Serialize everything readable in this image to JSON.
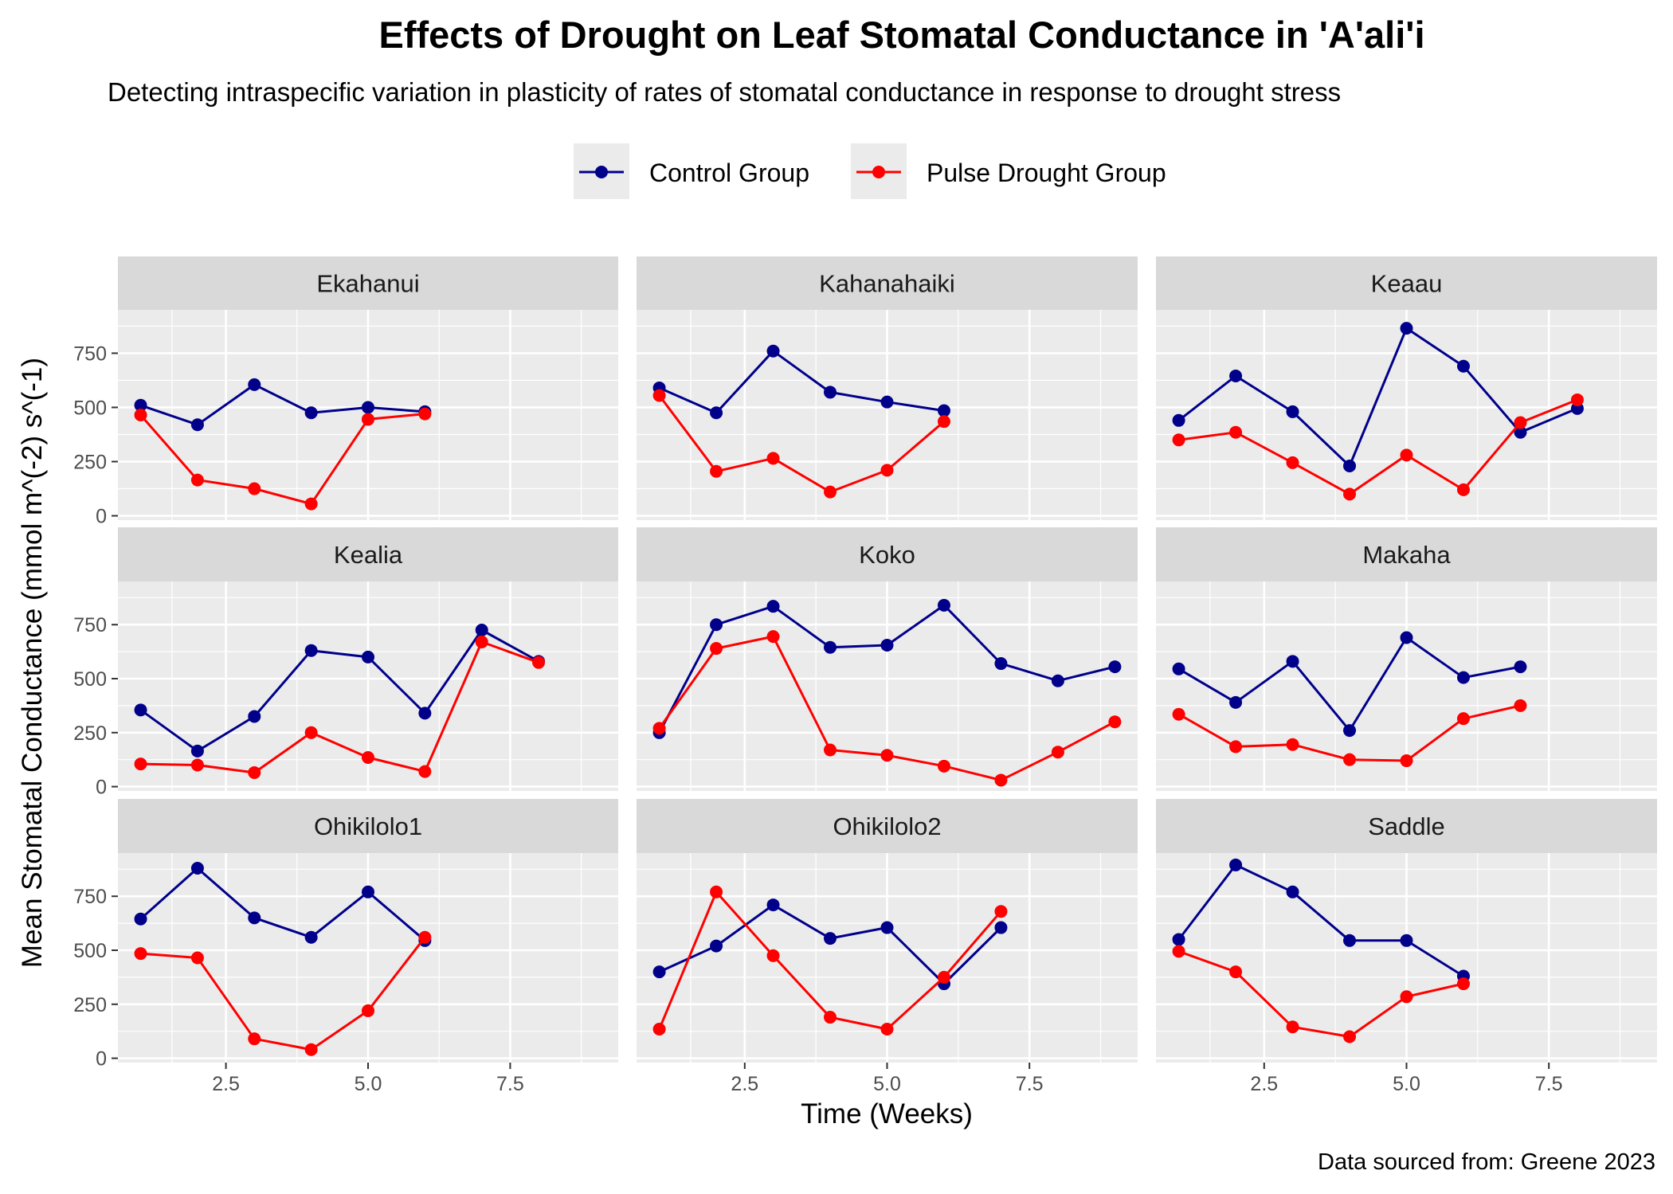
{
  "chart_data": {
    "type": "line",
    "title": "Effects of Drought on Leaf Stomatal Conductance in 'A'ali'i",
    "subtitle": "Detecting intraspecific variation in plasticity of rates of stomatal conductance in response to drought stress",
    "xlabel": "Time (Weeks)",
    "ylabel": "Mean Stomatal Conductance (mmol m^(-2) s^(-1)",
    "caption": "Data sourced from: Greene 2023",
    "xlim": [
      0.6,
      9.4
    ],
    "ylim": [
      -20,
      950
    ],
    "x_ticks": [
      2.5,
      5.0,
      7.5
    ],
    "x_tick_labels": [
      "2.5",
      "5.0",
      "7.5"
    ],
    "y_ticks": [
      0,
      250,
      500,
      750
    ],
    "y_tick_labels": [
      "0",
      "250",
      "500",
      "750"
    ],
    "grid": true,
    "legend_position": "top",
    "series_colors": {
      "Control Group": "#00008B",
      "Pulse Drought Group": "#FF0000"
    },
    "legend": [
      "Control Group",
      "Pulse Drought Group"
    ],
    "facets": [
      {
        "name": "Ekahanui",
        "series": [
          {
            "name": "Control Group",
            "x": [
              1,
              2,
              3,
              4,
              5,
              6
            ],
            "y": [
              510,
              420,
              605,
              475,
              500,
              480
            ]
          },
          {
            "name": "Pulse Drought Group",
            "x": [
              1,
              2,
              3,
              4,
              5,
              6
            ],
            "y": [
              465,
              165,
              125,
              55,
              445,
              470
            ]
          }
        ]
      },
      {
        "name": "Kahanahaiki",
        "series": [
          {
            "name": "Control Group",
            "x": [
              1,
              2,
              3,
              4,
              5,
              6
            ],
            "y": [
              590,
              475,
              760,
              570,
              525,
              485
            ]
          },
          {
            "name": "Pulse Drought Group",
            "x": [
              1,
              2,
              3,
              4,
              5,
              6
            ],
            "y": [
              555,
              205,
              265,
              110,
              210,
              435
            ]
          }
        ]
      },
      {
        "name": "Keaau",
        "series": [
          {
            "name": "Control Group",
            "x": [
              1,
              2,
              3,
              4,
              5,
              6,
              7,
              8
            ],
            "y": [
              440,
              645,
              480,
              230,
              865,
              690,
              385,
              495
            ]
          },
          {
            "name": "Pulse Drought Group",
            "x": [
              1,
              2,
              3,
              4,
              5,
              6,
              7,
              8
            ],
            "y": [
              350,
              385,
              245,
              100,
              280,
              120,
              430,
              535
            ]
          }
        ]
      },
      {
        "name": "Kealia",
        "series": [
          {
            "name": "Control Group",
            "x": [
              1,
              2,
              3,
              4,
              5,
              6,
              7,
              8
            ],
            "y": [
              355,
              165,
              325,
              630,
              600,
              340,
              725,
              580
            ]
          },
          {
            "name": "Pulse Drought Group",
            "x": [
              1,
              2,
              3,
              4,
              5,
              6,
              7,
              8
            ],
            "y": [
              105,
              100,
              65,
              250,
              135,
              70,
              670,
              575
            ]
          }
        ]
      },
      {
        "name": "Koko",
        "series": [
          {
            "name": "Control Group",
            "x": [
              1,
              2,
              3,
              4,
              5,
              6,
              7,
              8,
              9
            ],
            "y": [
              250,
              750,
              835,
              645,
              655,
              840,
              570,
              490,
              555
            ]
          },
          {
            "name": "Pulse Drought Group",
            "x": [
              1,
              2,
              3,
              4,
              5,
              6,
              7,
              8,
              9
            ],
            "y": [
              270,
              640,
              695,
              170,
              145,
              95,
              30,
              160,
              300
            ]
          }
        ]
      },
      {
        "name": "Makaha",
        "series": [
          {
            "name": "Control Group",
            "x": [
              1,
              2,
              3,
              4,
              5,
              6,
              7
            ],
            "y": [
              545,
              390,
              580,
              260,
              690,
              505,
              555
            ]
          },
          {
            "name": "Pulse Drought Group",
            "x": [
              1,
              2,
              3,
              4,
              5,
              6,
              7
            ],
            "y": [
              335,
              185,
              195,
              125,
              120,
              315,
              375
            ]
          }
        ]
      },
      {
        "name": "Ohikilolo1",
        "series": [
          {
            "name": "Control Group",
            "x": [
              1,
              2,
              3,
              4,
              5,
              6
            ],
            "y": [
              645,
              880,
              650,
              560,
              770,
              545
            ]
          },
          {
            "name": "Pulse Drought Group",
            "x": [
              1,
              2,
              3,
              4,
              5,
              6
            ],
            "y": [
              485,
              465,
              90,
              40,
              220,
              560
            ]
          }
        ]
      },
      {
        "name": "Ohikilolo2",
        "series": [
          {
            "name": "Control Group",
            "x": [
              1,
              2,
              3,
              4,
              5,
              6,
              7
            ],
            "y": [
              400,
              520,
              710,
              555,
              605,
              345,
              605
            ]
          },
          {
            "name": "Pulse Drought Group",
            "x": [
              1,
              2,
              3,
              4,
              5,
              6,
              7
            ],
            "y": [
              135,
              770,
              475,
              190,
              135,
              375,
              680
            ]
          }
        ]
      },
      {
        "name": "Saddle",
        "series": [
          {
            "name": "Control Group",
            "x": [
              1,
              2,
              3,
              4,
              5,
              6
            ],
            "y": [
              550,
              895,
              770,
              545,
              545,
              380
            ]
          },
          {
            "name": "Pulse Drought Group",
            "x": [
              1,
              2,
              3,
              4,
              5,
              6
            ],
            "y": [
              495,
              400,
              145,
              100,
              285,
              345
            ]
          }
        ]
      }
    ]
  }
}
